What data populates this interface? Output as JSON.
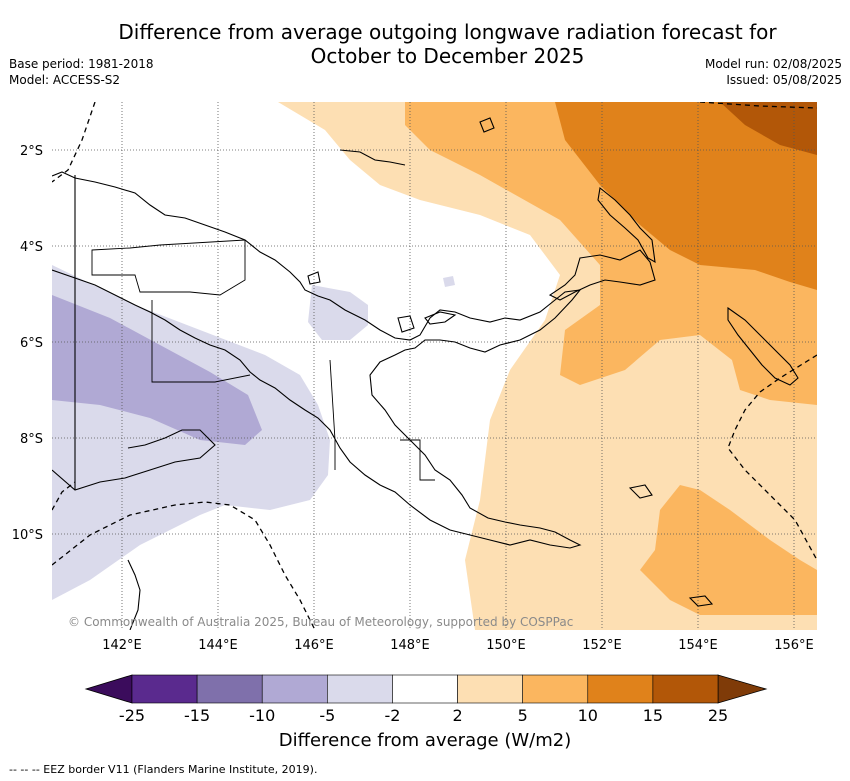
{
  "title_line1": "Difference from average outgoing longwave radiation forecast for",
  "title_line2": "October to December 2025",
  "base_period": "Base period: 1981-2018",
  "model": "Model: ACCESS-S2",
  "model_run": "Model run: 02/08/2025",
  "issued": "Issued: 05/08/2025",
  "copyright": "© Commonwealth of Australia 2025, Bureau of Meteorology, supported by COSPPac",
  "lat_labels": [
    "2°S",
    "4°S",
    "6°S",
    "8°S",
    "10°S"
  ],
  "lon_labels": [
    "142°E",
    "144°E",
    "146°E",
    "148°E",
    "150°E",
    "152°E",
    "154°E",
    "156°E"
  ],
  "colorbar": {
    "title": "Difference from average (W/m2)",
    "tick_labels": [
      "-25",
      "-15",
      "-10",
      "-5",
      "-2",
      "2",
      "5",
      "10",
      "15",
      "25"
    ],
    "colors": [
      "#5a2a8e",
      "#7f70ab",
      "#b0a9d4",
      "#dadaeb",
      "#ffffff",
      "#fddfb3",
      "#fbb65f",
      "#e0821b",
      "#b25708"
    ],
    "under_color": "#3b0c5c",
    "over_color": "#7f3b08"
  },
  "footnote": "-- -- -- EEZ border V11 (Flanders Marine Institute, 2019)."
}
